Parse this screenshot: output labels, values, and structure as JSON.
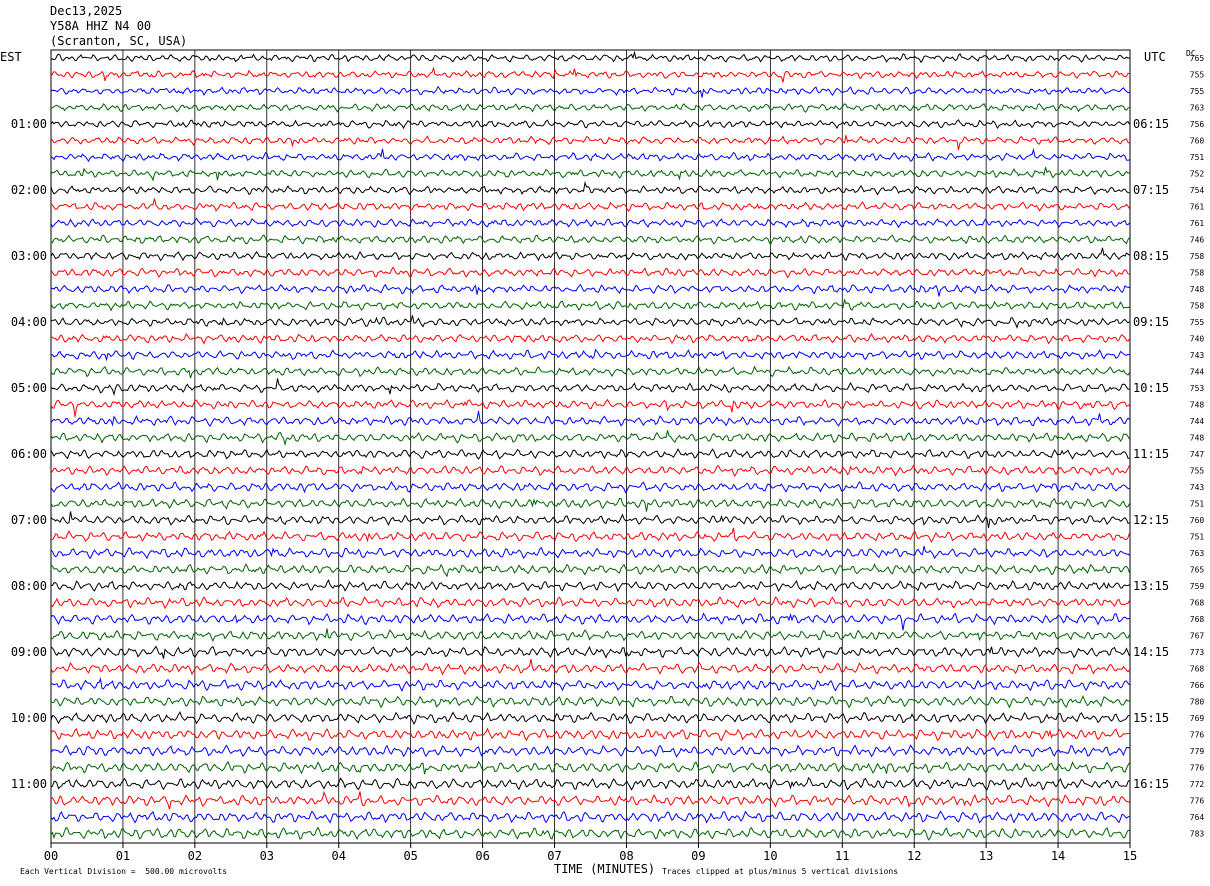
{
  "header": {
    "date": "Dec13,2025",
    "station": "Y58A HHZ N4 00",
    "location": "(Scranton, SC, USA)"
  },
  "left_tz": "EST",
  "right_tz": "UTC",
  "dc_label": "DC",
  "xlabel": "TIME (MINUTES)",
  "footer_left": "Each Vertical Division =  500.00 microvolts",
  "footer_right": "Traces clipped at plus/minus 5 vertical divisions",
  "colors": {
    "trace_cycle": [
      "#000000",
      "#ff0000",
      "#0000ff",
      "#006400"
    ],
    "grid": "#000000"
  },
  "chart_data": {
    "type": "line",
    "x_ticks": [
      "00",
      "01",
      "02",
      "03",
      "04",
      "05",
      "06",
      "07",
      "08",
      "09",
      "10",
      "11",
      "12",
      "13",
      "14",
      "15"
    ],
    "xlim": [
      0,
      15
    ],
    "left_hour_labels": [
      "01:00",
      "02:00",
      "03:00",
      "04:00",
      "05:00",
      "06:00",
      "07:00",
      "08:00",
      "09:00",
      "10:00",
      "11:00"
    ],
    "right_hour_labels": [
      "06:15",
      "07:15",
      "08:15",
      "09:15",
      "10:15",
      "11:15",
      "12:15",
      "13:15",
      "14:15",
      "15:15",
      "16:15"
    ],
    "dc_offsets": [
      765,
      755,
      755,
      763,
      756,
      760,
      751,
      752,
      754,
      761,
      761,
      746,
      758,
      758,
      748,
      758,
      755,
      740,
      743,
      744,
      753,
      748,
      744,
      748,
      747,
      755,
      743,
      751,
      760,
      751,
      763,
      765,
      759,
      768,
      768,
      767,
      773,
      768,
      766,
      780,
      769,
      776,
      779,
      776,
      772,
      776,
      764,
      783
    ],
    "trace_rows": 48,
    "minutes_per_row": 15,
    "grid": true
  }
}
